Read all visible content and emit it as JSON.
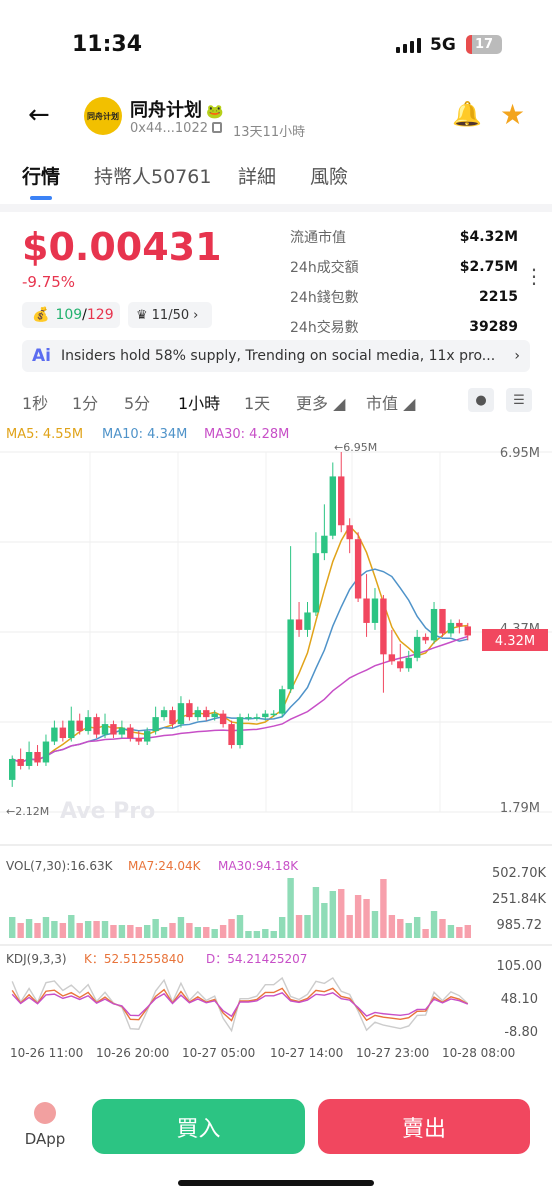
{
  "status": {
    "time": "11:34",
    "network": "5G",
    "battery": "17",
    "battery_level": 0.17
  },
  "token": {
    "name": "同舟计划",
    "avatar_text": "同舟计划",
    "address": "0x44...1022",
    "age": "13天11小時"
  },
  "tabs": [
    {
      "label": "行情"
    },
    {
      "label": "持幣人50761"
    },
    {
      "label": "詳細"
    },
    {
      "label": "風險"
    }
  ],
  "price": {
    "value": "$0.00431",
    "change": "-9.75%"
  },
  "pills": {
    "wallet_a": "109",
    "sep": "/",
    "wallet_b": "129",
    "crown": "11/50"
  },
  "stats": [
    {
      "label": "流通市值",
      "value": "$4.32M"
    },
    {
      "label": "24h成交額",
      "value": "$2.75M"
    },
    {
      "label": "24h錢包數",
      "value": "2215"
    },
    {
      "label": "24h交易數",
      "value": "39289"
    }
  ],
  "ai": {
    "logo": "Ai",
    "text": "Insiders hold 58% supply, Trending on social media, 11x pro..."
  },
  "intervals": [
    {
      "label": "1秒"
    },
    {
      "label": "1分"
    },
    {
      "label": "5分"
    },
    {
      "label": "1小時"
    },
    {
      "label": "1天"
    },
    {
      "label": "更多"
    },
    {
      "label": "市值"
    }
  ],
  "chart_data": {
    "type": "candlestick",
    "ma_legend": {
      "ma5": "MA5: 4.55M",
      "ma10": "MA10: 4.34M",
      "ma30": "MA30: 4.28M"
    },
    "y_ticks": [
      "6.95M",
      "4.37M",
      "1.79M"
    ],
    "high_label": "←6.95M",
    "low_label": "←2.12M",
    "current": "4.32M",
    "watermark": "Ave Pro",
    "x_ticks": [
      "10-26 11:00",
      "10-26 20:00",
      "10-27 05:00",
      "10-27 14:00",
      "10-27 23:00",
      "10-28 08:00"
    ],
    "candles": [
      [
        2.25,
        2.55,
        2.15,
        2.6
      ],
      [
        2.55,
        2.45,
        2.4,
        2.7
      ],
      [
        2.45,
        2.65,
        2.4,
        2.8
      ],
      [
        2.65,
        2.5,
        2.45,
        2.75
      ],
      [
        2.5,
        2.8,
        2.45,
        2.9
      ],
      [
        2.8,
        3.0,
        2.75,
        3.1
      ],
      [
        3.0,
        2.85,
        2.8,
        3.1
      ],
      [
        2.85,
        3.1,
        2.8,
        3.3
      ],
      [
        3.1,
        2.95,
        2.9,
        3.2
      ],
      [
        2.95,
        3.15,
        2.9,
        3.25
      ],
      [
        3.15,
        2.9,
        2.85,
        3.2
      ],
      [
        2.9,
        3.05,
        2.85,
        3.2
      ],
      [
        3.05,
        2.9,
        2.85,
        3.1
      ],
      [
        2.9,
        3.0,
        2.85,
        3.1
      ],
      [
        3.0,
        2.85,
        2.8,
        3.05
      ],
      [
        2.85,
        2.8,
        2.75,
        2.95
      ],
      [
        2.8,
        2.95,
        2.75,
        3.0
      ],
      [
        2.95,
        3.15,
        2.9,
        3.3
      ],
      [
        3.15,
        3.25,
        3.1,
        3.3
      ],
      [
        3.25,
        3.05,
        3.0,
        3.3
      ],
      [
        3.05,
        3.35,
        3.0,
        3.45
      ],
      [
        3.35,
        3.15,
        3.1,
        3.4
      ],
      [
        3.15,
        3.25,
        3.1,
        3.3
      ],
      [
        3.25,
        3.15,
        3.1,
        3.3
      ],
      [
        3.15,
        3.2,
        3.1,
        3.25
      ],
      [
        3.2,
        3.05,
        3.0,
        3.25
      ],
      [
        3.05,
        2.75,
        2.7,
        3.1
      ],
      [
        2.75,
        3.15,
        2.7,
        3.2
      ],
      [
        3.15,
        3.15,
        3.1,
        3.2
      ],
      [
        3.15,
        3.15,
        3.1,
        3.2
      ],
      [
        3.15,
        3.2,
        3.1,
        3.25
      ],
      [
        3.2,
        3.2,
        3.15,
        3.25
      ],
      [
        3.2,
        3.55,
        3.15,
        3.6
      ],
      [
        3.55,
        4.55,
        3.5,
        5.6
      ],
      [
        4.55,
        4.4,
        4.3,
        4.8
      ],
      [
        4.4,
        4.65,
        4.3,
        4.8
      ],
      [
        4.65,
        5.5,
        4.6,
        5.8
      ],
      [
        5.5,
        5.75,
        5.4,
        6.2
      ],
      [
        5.75,
        6.6,
        5.7,
        6.8
      ],
      [
        6.6,
        5.9,
        5.8,
        6.95
      ],
      [
        5.9,
        5.7,
        5.5,
        6.0
      ],
      [
        5.7,
        4.85,
        4.8,
        5.8
      ],
      [
        4.85,
        4.5,
        4.3,
        5.2
      ],
      [
        4.5,
        4.85,
        4.4,
        5.0
      ],
      [
        4.85,
        4.05,
        3.5,
        4.9
      ],
      [
        4.05,
        3.95,
        3.9,
        4.4
      ],
      [
        3.95,
        3.85,
        3.8,
        4.2
      ],
      [
        3.85,
        4.0,
        3.8,
        4.1
      ],
      [
        4.0,
        4.3,
        3.95,
        4.4
      ],
      [
        4.3,
        4.25,
        4.2,
        4.35
      ],
      [
        4.25,
        4.7,
        4.2,
        4.8
      ],
      [
        4.7,
        4.35,
        4.3,
        4.7
      ],
      [
        4.35,
        4.5,
        4.3,
        4.55
      ],
      [
        4.5,
        4.45,
        4.35,
        4.55
      ],
      [
        4.45,
        4.32,
        4.25,
        4.5
      ]
    ],
    "vol_legend": {
      "vol": "VOL(7,30):16.63K",
      "ma7": "MA7:24.04K",
      "ma30": "MA30:94.18K"
    },
    "vol_ticks": [
      "502.70K",
      "251.84K",
      "985.72"
    ],
    "kdj_legend": {
      "title": "KDJ(9,3,3)",
      "k": "K：52.51255840",
      "d": "D：54.21425207"
    },
    "kdj_ticks": [
      "105.00",
      "48.10",
      "-8.80"
    ]
  },
  "actions": {
    "dapp": "DApp",
    "buy": "買入",
    "sell": "賣出"
  }
}
